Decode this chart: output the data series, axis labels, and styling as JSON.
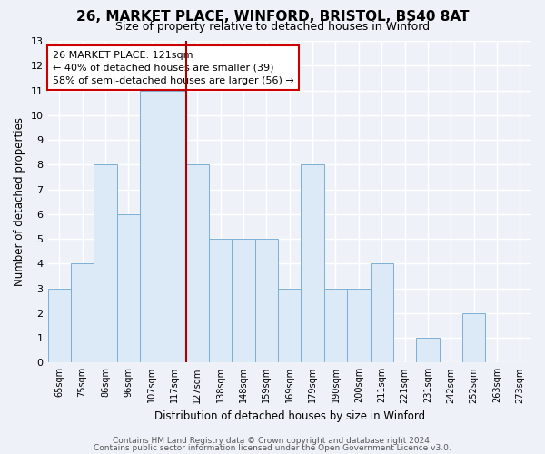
{
  "title": "26, MARKET PLACE, WINFORD, BRISTOL, BS40 8AT",
  "subtitle": "Size of property relative to detached houses in Winford",
  "xlabel": "Distribution of detached houses by size in Winford",
  "ylabel": "Number of detached properties",
  "categories": [
    "65sqm",
    "75sqm",
    "86sqm",
    "96sqm",
    "107sqm",
    "117sqm",
    "127sqm",
    "138sqm",
    "148sqm",
    "159sqm",
    "169sqm",
    "179sqm",
    "190sqm",
    "200sqm",
    "211sqm",
    "221sqm",
    "231sqm",
    "242sqm",
    "252sqm",
    "263sqm",
    "273sqm"
  ],
  "values": [
    3,
    4,
    8,
    6,
    11,
    11,
    8,
    5,
    5,
    5,
    3,
    8,
    3,
    3,
    4,
    0,
    1,
    0,
    2,
    0,
    0
  ],
  "bar_color": "#dce9f7",
  "bar_edge_color": "#7bafd4",
  "highlight_line_color": "#aa0000",
  "annotation_box_text": "26 MARKET PLACE: 121sqm\n← 40% of detached houses are smaller (39)\n58% of semi-detached houses are larger (56) →",
  "ylim": [
    0,
    13
  ],
  "yticks": [
    0,
    1,
    2,
    3,
    4,
    5,
    6,
    7,
    8,
    9,
    10,
    11,
    12,
    13
  ],
  "footer_line1": "Contains HM Land Registry data © Crown copyright and database right 2024.",
  "footer_line2": "Contains public sector information licensed under the Open Government Licence v3.0.",
  "background_color": "#eef2f8",
  "plot_background_color": "#eef2f8",
  "grid_color": "#ffffff",
  "title_fontsize": 11,
  "subtitle_fontsize": 9,
  "annotation_fontsize": 8,
  "footer_fontsize": 6.5
}
